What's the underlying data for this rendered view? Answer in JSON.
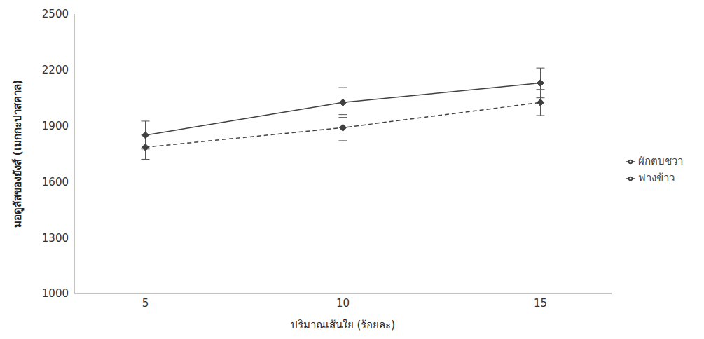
{
  "chart_data": {
    "type": "line",
    "x_label": "ปริมาณเส้นใย (ร้อยละ)",
    "y_label": "มอดูลัสของยังส์ (เมกกะปาสคาล)",
    "x": [
      5,
      10,
      15
    ],
    "xlim": [
      3.2,
      16.8
    ],
    "xticks": [
      5,
      10,
      15
    ],
    "ylim": [
      1000,
      2500
    ],
    "yticks": [
      1000,
      1300,
      1600,
      1900,
      2200,
      2500
    ],
    "grid": false,
    "legend": "right",
    "series": [
      {
        "name": "ผักตบชวา",
        "color": "#404040",
        "marker": "diamond",
        "line_style": "solid",
        "values": [
          1850,
          2025,
          2130
        ],
        "errors": [
          75,
          80,
          80
        ]
      },
      {
        "name": "ฟางข้าว",
        "color": "#404040",
        "marker": "diamond",
        "line_style": "dashed",
        "values": [
          1785,
          1890,
          2025
        ],
        "errors": [
          65,
          70,
          70
        ]
      }
    ]
  }
}
